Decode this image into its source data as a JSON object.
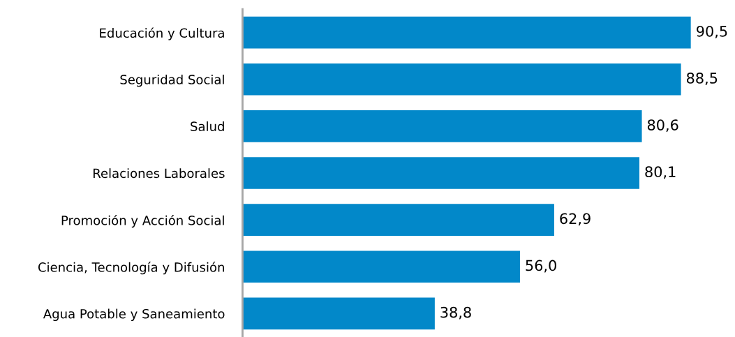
{
  "chart_data": {
    "type": "bar",
    "orientation": "horizontal",
    "categories": [
      "Educación y Cultura",
      "Seguridad Social",
      "Salud",
      "Relaciones Laborales",
      "Promoción y Acción Social",
      "Ciencia, Tecnología y Difusión",
      "Agua Potable y Saneamiento"
    ],
    "values": [
      90.5,
      88.5,
      80.6,
      80.1,
      62.9,
      56.0,
      38.8
    ],
    "value_labels": [
      "90,5",
      "88,5",
      "80,6",
      "80,1",
      "62,9",
      "56,0",
      "38,8"
    ],
    "color": "#0288c9",
    "grid": false,
    "legend": false,
    "tick_labels": "y"
  }
}
